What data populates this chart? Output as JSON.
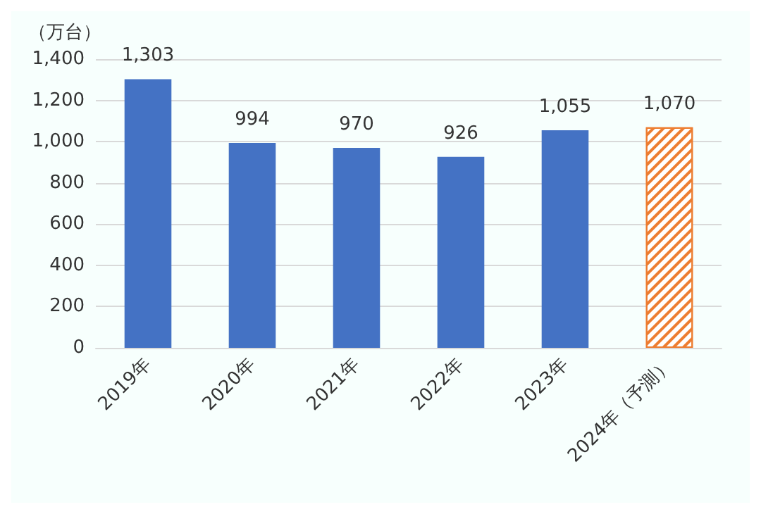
{
  "chart_data": {
    "type": "bar",
    "ylabel": "（万台）",
    "categories": [
      "2019年",
      "2020年",
      "2021年",
      "2022年",
      "2023年",
      "2024年（予測）"
    ],
    "values": [
      1303,
      994,
      970,
      926,
      1055,
      1070
    ],
    "color": "#4472c4",
    "colors": [
      "#4472c4",
      "#4472c4",
      "#4472c4",
      "#4472c4",
      "#4472c4",
      "#ed7d31"
    ],
    "value_labels": [
      "1,303",
      "994",
      "970",
      "926",
      "1,055",
      "1,070"
    ],
    "ylim": [
      0,
      1400
    ],
    "yticks": [
      0,
      200,
      400,
      600,
      800,
      {
        "value": 1000,
        "label": "1,000"
      },
      {
        "value": 1200,
        "label": "1,200"
      },
      {
        "value": 1400,
        "label": "1,400"
      }
    ],
    "grid": "y"
  }
}
